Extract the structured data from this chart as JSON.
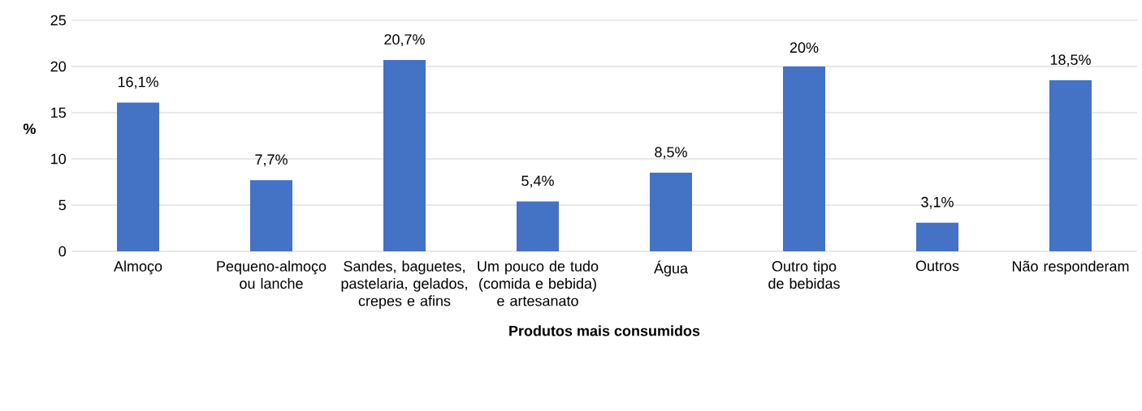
{
  "chart_data": {
    "type": "bar",
    "xlabel": "Produtos mais consumidos",
    "ylabel": "%",
    "categories": [
      "Almoço",
      "Pequeno-almoço ou lanche",
      "Sandes, baguetes, pastelaria, gelados, crepes e afins",
      "Um pouco de tudo (comida e bebida) e artesanato",
      "Água",
      "Outro tipo de bebidas",
      "Outros",
      "Não responderam"
    ],
    "values": [
      16.1,
      7.7,
      20.7,
      5.4,
      8.5,
      20,
      3.1,
      18.5
    ],
    "value_labels": [
      "16,1%",
      "7,7%",
      "20,7%",
      "5,4%",
      "8,5%",
      "20%",
      "3,1%",
      "18,5%"
    ],
    "color": "#4472c4",
    "ylim": [
      0,
      25
    ],
    "yticks": [
      0,
      5,
      10,
      15,
      20,
      25
    ],
    "grid": "y"
  }
}
